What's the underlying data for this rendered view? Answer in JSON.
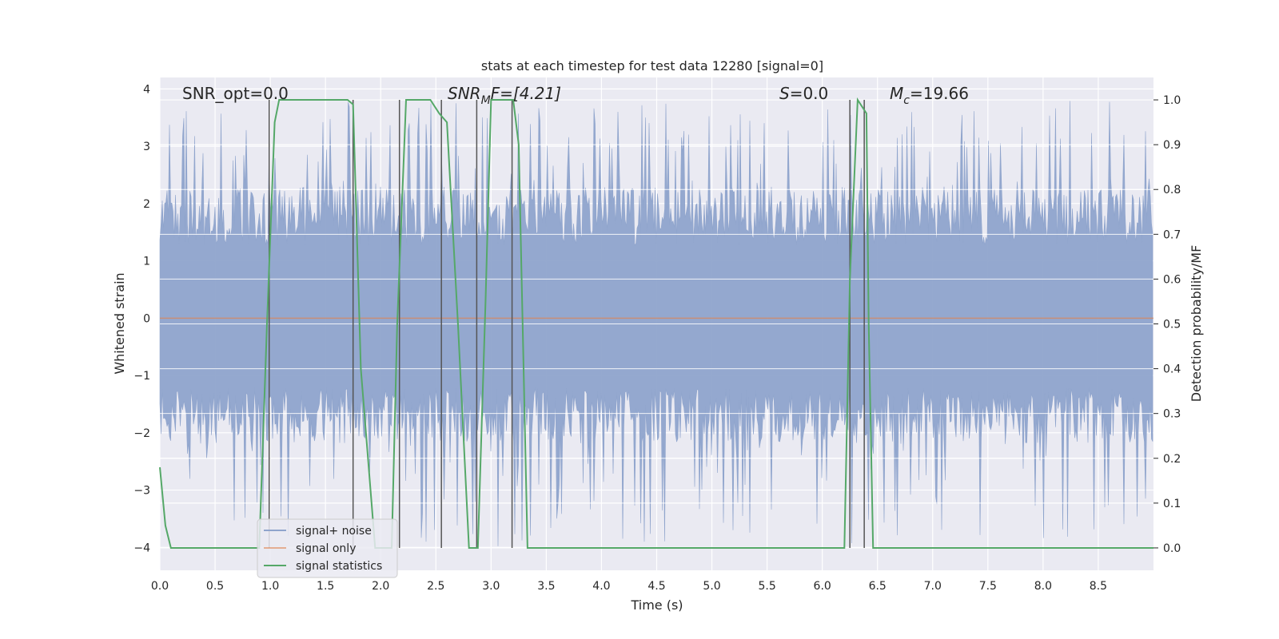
{
  "chart_data": {
    "type": "line",
    "title": "stats at each timestep for test data 12280 [signal=0]",
    "xlabel": "Time (s)",
    "ylabel_left": "Whitened strain",
    "ylabel_right": "Detection probability/MF",
    "xlim": [
      0,
      9.0
    ],
    "ylim_left": [
      -4.4,
      4.2
    ],
    "ylim_right": [
      -0.05,
      1.05
    ],
    "xticks": [
      "0.0",
      "0.5",
      "1.0",
      "1.5",
      "2.0",
      "2.5",
      "3.0",
      "3.5",
      "4.0",
      "4.5",
      "5.0",
      "5.5",
      "6.0",
      "6.5",
      "7.0",
      "7.5",
      "8.0",
      "8.5"
    ],
    "yticks_left": [
      "−4",
      "−3",
      "−2",
      "−1",
      "0",
      "1",
      "2",
      "3",
      "4"
    ],
    "yticks_right": [
      "0.0",
      "0.1",
      "0.2",
      "0.3",
      "0.4",
      "0.5",
      "0.6",
      "0.7",
      "0.8",
      "0.9",
      "1.0"
    ],
    "grid": true,
    "legend_position": "lower-left",
    "annotations": {
      "snr_opt": "SNR_opt=0.0",
      "snr_mf_base": "SNR",
      "snr_mf_sub": "M",
      "snr_mf_rest": "F=[4.21]",
      "s_sym": "S",
      "s_val": "=0.0",
      "mc_sym": "M",
      "mc_sub": "c",
      "mc_val": "=19.66"
    },
    "colors": {
      "noise": "#8fa4cc",
      "signal": "#dd8452",
      "stats": "#55a868",
      "vlines": "#555555",
      "background": "#eaeaf2",
      "grid": "#ffffff"
    },
    "series": [
      {
        "name": "signal+ noise",
        "axis": "left",
        "style": "dense noise band",
        "envelope_max": 3.8,
        "envelope_min": -4.0,
        "typical_range": [
          -2.2,
          2.3
        ]
      },
      {
        "name": "signal only",
        "axis": "left",
        "x": [
          0.0,
          9.0
        ],
        "y": [
          0.0,
          0.0
        ]
      },
      {
        "name": "signal statistics",
        "axis": "right",
        "x": [
          0.0,
          0.05,
          0.1,
          0.9,
          0.97,
          1.04,
          1.08,
          1.7,
          1.75,
          1.82,
          1.95,
          2.1,
          2.15,
          2.23,
          2.45,
          2.53,
          2.6,
          2.7,
          2.8,
          2.88,
          2.95,
          3.0,
          3.2,
          3.25,
          3.33,
          6.2,
          6.25,
          6.32,
          6.4,
          6.42,
          6.46,
          9.0
        ],
        "y": [
          0.18,
          0.05,
          0.0,
          0.0,
          0.5,
          0.95,
          1.0,
          1.0,
          0.99,
          0.4,
          0.0,
          0.0,
          0.5,
          1.0,
          1.0,
          0.97,
          0.95,
          0.5,
          0.0,
          0.0,
          0.55,
          1.0,
          1.0,
          0.9,
          0.0,
          0.0,
          0.6,
          1.0,
          0.97,
          0.5,
          0.0,
          0.0
        ]
      }
    ],
    "vertical_markers": [
      0.99,
      1.75,
      2.17,
      2.55,
      2.87,
      3.19,
      6.25,
      6.38
    ],
    "legend": [
      {
        "label": "signal+ noise"
      },
      {
        "label": "signal only"
      },
      {
        "label": "signal statistics"
      }
    ]
  }
}
